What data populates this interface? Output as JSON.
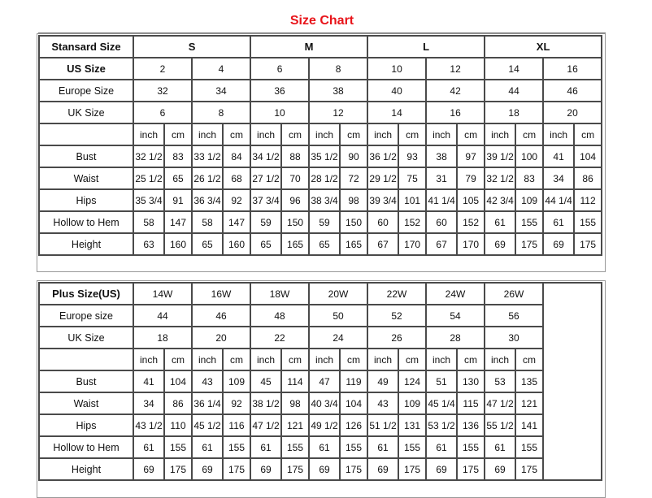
{
  "title": "Size Chart",
  "standard": {
    "header_label": "Stansard Size",
    "groups": [
      "S",
      "M",
      "L",
      "XL"
    ],
    "size_rows": [
      {
        "label": "US Size",
        "values": [
          "2",
          "4",
          "6",
          "8",
          "10",
          "12",
          "14",
          "16"
        ]
      },
      {
        "label": "Europe Size",
        "values": [
          "32",
          "34",
          "36",
          "38",
          "40",
          "42",
          "44",
          "46"
        ]
      },
      {
        "label": "UK Size",
        "values": [
          "6",
          "8",
          "10",
          "12",
          "14",
          "16",
          "18",
          "20"
        ]
      }
    ],
    "units": [
      "inch",
      "cm",
      "inch",
      "cm",
      "inch",
      "cm",
      "inch",
      "cm",
      "inch",
      "cm",
      "inch",
      "cm",
      "inch",
      "cm",
      "inch",
      "cm"
    ],
    "measure_rows": [
      {
        "label": "Bust",
        "values": [
          "32 1/2",
          "83",
          "33 1/2",
          "84",
          "34 1/2",
          "88",
          "35 1/2",
          "90",
          "36 1/2",
          "93",
          "38",
          "97",
          "39 1/2",
          "100",
          "41",
          "104"
        ]
      },
      {
        "label": "Waist",
        "values": [
          "25 1/2",
          "65",
          "26 1/2",
          "68",
          "27 1/2",
          "70",
          "28 1/2",
          "72",
          "29 1/2",
          "75",
          "31",
          "79",
          "32 1/2",
          "83",
          "34",
          "86"
        ]
      },
      {
        "label": "Hips",
        "values": [
          "35 3/4",
          "91",
          "36 3/4",
          "92",
          "37 3/4",
          "96",
          "38 3/4",
          "98",
          "39 3/4",
          "101",
          "41 1/4",
          "105",
          "42 3/4",
          "109",
          "44 1/4",
          "112"
        ]
      },
      {
        "label": "Hollow to Hem",
        "values": [
          "58",
          "147",
          "58",
          "147",
          "59",
          "150",
          "59",
          "150",
          "60",
          "152",
          "60",
          "152",
          "61",
          "155",
          "61",
          "155"
        ]
      },
      {
        "label": "Height",
        "values": [
          "63",
          "160",
          "65",
          "160",
          "65",
          "165",
          "65",
          "165",
          "67",
          "170",
          "67",
          "170",
          "69",
          "175",
          "69",
          "175"
        ]
      }
    ]
  },
  "plus": {
    "header_label": "Plus Size(US)",
    "sizes": [
      "14W",
      "16W",
      "18W",
      "20W",
      "22W",
      "24W",
      "26W"
    ],
    "size_rows": [
      {
        "label": "Europe size",
        "values": [
          "44",
          "46",
          "48",
          "50",
          "52",
          "54",
          "56"
        ]
      },
      {
        "label": "UK Size",
        "values": [
          "18",
          "20",
          "22",
          "24",
          "26",
          "28",
          "30"
        ]
      }
    ],
    "units": [
      "inch",
      "cm",
      "inch",
      "cm",
      "inch",
      "cm",
      "inch",
      "cm",
      "inch",
      "cm",
      "inch",
      "cm",
      "inch",
      "cm"
    ],
    "measure_rows": [
      {
        "label": "Bust",
        "values": [
          "41",
          "104",
          "43",
          "109",
          "45",
          "114",
          "47",
          "119",
          "49",
          "124",
          "51",
          "130",
          "53",
          "135"
        ]
      },
      {
        "label": "Waist",
        "values": [
          "34",
          "86",
          "36 1/4",
          "92",
          "38 1/2",
          "98",
          "40 3/4",
          "104",
          "43",
          "109",
          "45 1/4",
          "115",
          "47 1/2",
          "121"
        ]
      },
      {
        "label": "Hips",
        "values": [
          "43 1/2",
          "110",
          "45 1/2",
          "116",
          "47 1/2",
          "121",
          "49 1/2",
          "126",
          "51 1/2",
          "131",
          "53 1/2",
          "136",
          "55 1/2",
          "141"
        ]
      },
      {
        "label": "Hollow to Hem",
        "values": [
          "61",
          "155",
          "61",
          "155",
          "61",
          "155",
          "61",
          "155",
          "61",
          "155",
          "61",
          "155",
          "61",
          "155"
        ]
      },
      {
        "label": "Height",
        "values": [
          "69",
          "175",
          "69",
          "175",
          "69",
          "175",
          "69",
          "175",
          "69",
          "175",
          "69",
          "175",
          "69",
          "175"
        ]
      }
    ]
  }
}
